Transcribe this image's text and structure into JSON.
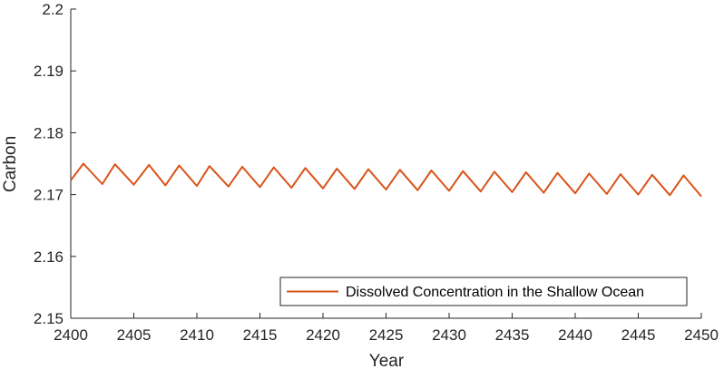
{
  "chart_data": {
    "type": "line",
    "title": "",
    "xlabel": "Year",
    "ylabel": "Carbon",
    "xlim": [
      2400,
      2450
    ],
    "ylim": [
      2.15,
      2.2
    ],
    "xticks": [
      2400,
      2405,
      2410,
      2415,
      2420,
      2425,
      2430,
      2435,
      2440,
      2445,
      2450
    ],
    "xtick_labels": [
      "2400",
      "2405",
      "2410",
      "2415",
      "2420",
      "2425",
      "2430",
      "2435",
      "2440",
      "2445",
      "2450"
    ],
    "yticks": [
      2.15,
      2.16,
      2.17,
      2.18,
      2.19,
      2.2
    ],
    "ytick_labels": [
      "2.15",
      "2.16",
      "2.17",
      "2.18",
      "2.19",
      "2.2"
    ],
    "grid": false,
    "legend_position": "bottom-right",
    "series": [
      {
        "name": "Dissolved Concentration in the Shallow Ocean",
        "color": "#d95319",
        "x": [
          2400,
          2401,
          2402.5,
          2403.5,
          2405,
          2406.2,
          2407.5,
          2408.6,
          2410,
          2411,
          2412.5,
          2413.6,
          2415,
          2416.1,
          2417.5,
          2418.6,
          2420,
          2421.1,
          2422.5,
          2423.6,
          2425,
          2426.1,
          2427.5,
          2428.6,
          2430,
          2431.1,
          2432.5,
          2433.6,
          2435,
          2436.1,
          2437.5,
          2438.6,
          2440,
          2441.1,
          2442.5,
          2443.6,
          2445,
          2446.1,
          2447.5,
          2448.6,
          2450
        ],
        "y": [
          2.1723,
          2.175,
          2.1717,
          2.1749,
          2.1716,
          2.1748,
          2.1715,
          2.1747,
          2.1714,
          2.1746,
          2.1713,
          2.1745,
          2.1712,
          2.1744,
          2.1711,
          2.1743,
          2.171,
          2.1742,
          2.1709,
          2.1741,
          2.1708,
          2.174,
          2.1707,
          2.1739,
          2.1706,
          2.1738,
          2.1705,
          2.1737,
          2.1704,
          2.1736,
          2.1703,
          2.1735,
          2.1702,
          2.1734,
          2.1701,
          2.1733,
          2.17,
          2.1732,
          2.1699,
          2.1731,
          2.1697
        ]
      }
    ]
  }
}
